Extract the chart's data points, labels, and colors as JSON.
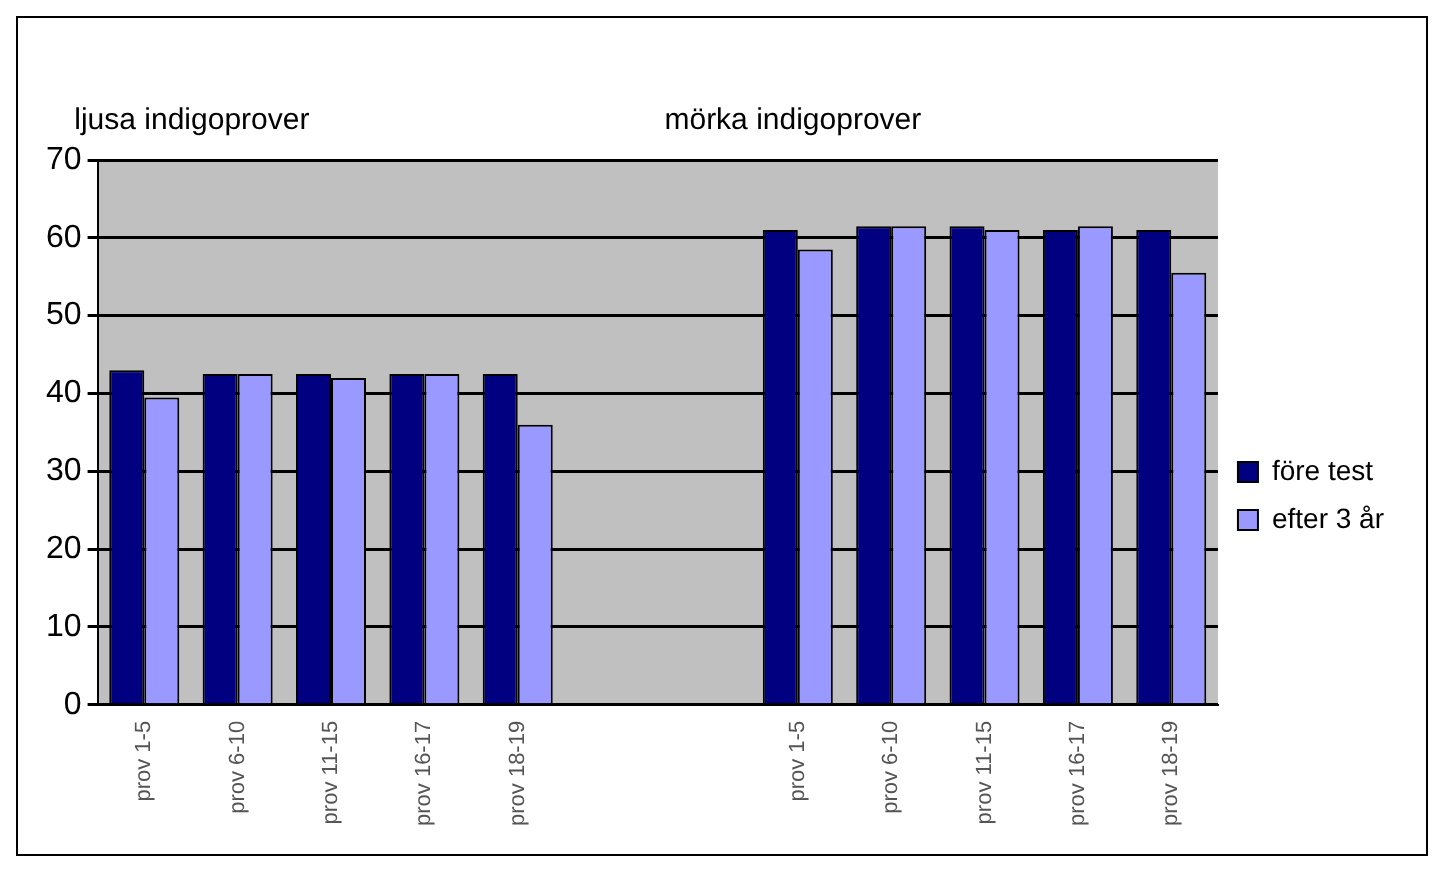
{
  "chart_data": {
    "type": "bar",
    "categories": [
      "prov 1-5",
      "prov 6-10",
      "prov 11-15",
      "prov 16-17",
      "prov 18-19",
      null,
      null,
      "prov 1-5",
      "prov 6-10",
      "prov 11-15",
      "prov 16-17",
      "prov 18-19"
    ],
    "series": [
      {
        "name": "före test",
        "color": "#000080",
        "values": [
          43,
          42.5,
          42.5,
          42.5,
          42.5,
          null,
          null,
          61,
          61.5,
          61.5,
          61,
          61
        ]
      },
      {
        "name": "efter 3 år",
        "color": "#9999ff",
        "values": [
          39.5,
          42.5,
          42,
          42.5,
          36,
          null,
          null,
          58.5,
          61.5,
          61,
          61.5,
          55.5
        ]
      }
    ],
    "ylim": [
      0,
      70
    ],
    "yticks": [
      0,
      10,
      20,
      30,
      40,
      50,
      60,
      70
    ],
    "grid": "y",
    "legend": "right",
    "annotations": [
      "ljusa indigoprover",
      "mörka indigoprover"
    ]
  }
}
